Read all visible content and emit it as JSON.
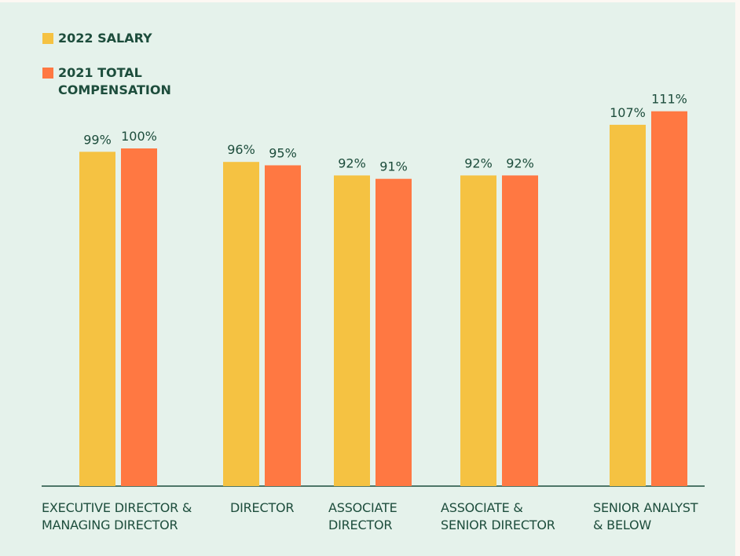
{
  "chart_data": {
    "type": "bar",
    "categories": [
      "EXECUTIVE DIRECTOR & MANAGING DIRECTOR",
      "DIRECTOR",
      "ASSOCIATE DIRECTOR",
      "ASSOCIATE & SENIOR DIRECTOR",
      "SENIOR ANALYST & BELOW"
    ],
    "series": [
      {
        "name": "2022 SALARY",
        "color": "#f5c242",
        "values": [
          99,
          96,
          92,
          92,
          107
        ],
        "value_labels": [
          "99%",
          "96%",
          "92%",
          "92%",
          "107%"
        ]
      },
      {
        "name": "2021 TOTAL COMPENSATION",
        "color": "#ff7842",
        "values": [
          100,
          95,
          91,
          92,
          111
        ],
        "value_labels": [
          "100%",
          "95%",
          "91%",
          "92%",
          "111%"
        ]
      }
    ]
  }
}
